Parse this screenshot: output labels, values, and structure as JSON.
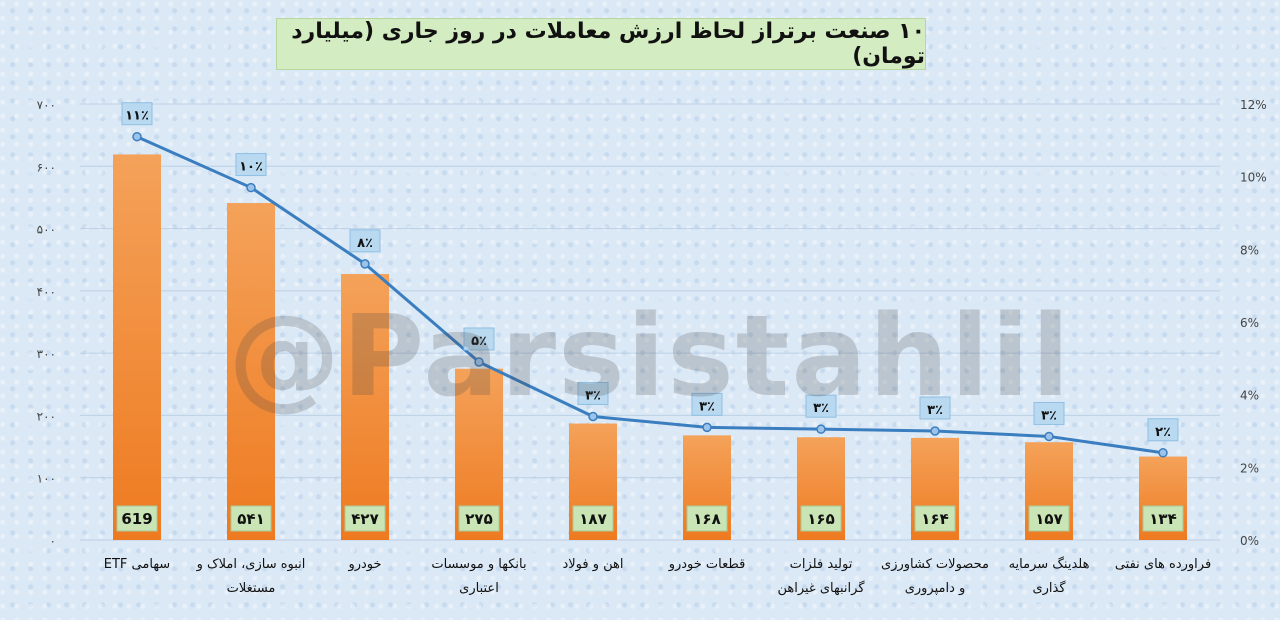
{
  "chart_data": {
    "type": "bar",
    "title": "۱۰ صنعت برتراز لحاظ ارزش معاملات در روز جاری (میلیارد تومان)",
    "categories": [
      [
        "سهامی ETF"
      ],
      [
        "انبوه سازی، املاک و",
        "مستغلات"
      ],
      [
        "خودرو"
      ],
      [
        "بانکها و موسسات",
        "اعتباری"
      ],
      [
        "اهن و فولاد"
      ],
      [
        "قطعات خودرو"
      ],
      [
        "تولید فلزات",
        "گرانبهای غیراهن"
      ],
      [
        "محصولات کشاورزی",
        "و دامپروری"
      ],
      [
        "هلدینگ سرمایه",
        "گذاری"
      ],
      [
        "فراورده های نفتی"
      ]
    ],
    "values": [
      619,
      541,
      427,
      275,
      187,
      168,
      165,
      164,
      157,
      134
    ],
    "value_labels": [
      "619",
      "۵۴۱",
      "۴۲۷",
      "۲۷۵",
      "۱۸۷",
      "۱۶۸",
      "۱۶۵",
      "۱۶۴",
      "۱۵۷",
      "۱۳۴"
    ],
    "line_series": {
      "values": [
        11.1,
        9.7,
        7.6,
        4.9,
        3.4,
        3.1,
        3.05,
        3.0,
        2.85,
        2.4
      ],
      "labels": [
        "۱۱٪",
        "۱۰٪",
        "۸٪",
        "۵٪",
        "۳٪",
        "۳٪",
        "۳٪",
        "۳٪",
        "۳٪",
        "۲٪"
      ]
    },
    "y_left": {
      "range": [
        0,
        700
      ],
      "ticks": [
        0,
        100,
        200,
        300,
        400,
        500,
        600,
        700
      ],
      "tick_labels": [
        "۰",
        "۱۰۰",
        "۲۰۰",
        "۳۰۰",
        "۴۰۰",
        "۵۰۰",
        "۶۰۰",
        "۷۰۰"
      ]
    },
    "y_right": {
      "range": [
        0,
        12
      ],
      "ticks": [
        0,
        2,
        4,
        6,
        8,
        10,
        12
      ],
      "tick_labels": [
        "0%",
        "2%",
        "4%",
        "6%",
        "8%",
        "10%",
        "12%"
      ]
    },
    "grid": true,
    "colors": {
      "bar_top": "#f4a25a",
      "bar_bottom": "#ee7a20",
      "line": "#3b7ec0",
      "label_box": "#c9e5b5",
      "pct_box": "#b8d9f0"
    }
  },
  "watermark": "@Parsistahlil"
}
